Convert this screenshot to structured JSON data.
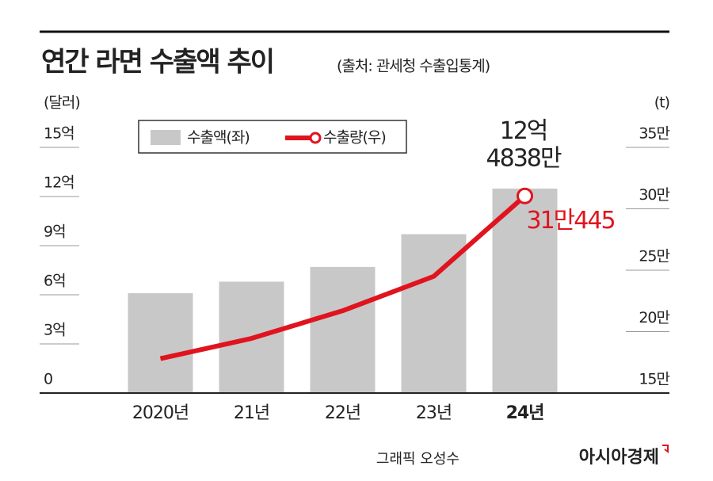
{
  "chart_data": {
    "type": "bar",
    "title": "연간 라면 수출액 추이",
    "subtitle": "(출처: 관세청 수출입통계)",
    "y_label": "(달러)",
    "y2_label": "(t)",
    "categories": [
      "2020년",
      "21년",
      "22년",
      "23년",
      "24년"
    ],
    "series": [
      {
        "name": "수출액(좌)",
        "type": "bar",
        "color": "#c8c8c8",
        "values": [
          6.1,
          6.8,
          7.7,
          9.7,
          12.4838
        ],
        "value_labels": [
          null,
          null,
          null,
          null,
          "12억\n4838만"
        ]
      },
      {
        "name": "수출량(우)",
        "type": "line",
        "axis": "y2",
        "color": "#e0141e",
        "values": [
          17.8,
          19.45,
          21.7,
          24.5,
          31.0445
        ],
        "value_labels": [
          null,
          null,
          null,
          null,
          "31만445"
        ]
      }
    ],
    "ylim": [
      0,
      15
    ],
    "yticks": [
      0,
      {
        "value": 3,
        "label": "3억"
      },
      {
        "value": 6,
        "label": "6억"
      },
      {
        "value": 9,
        "label": "9억"
      },
      {
        "value": 12,
        "label": "12억"
      },
      {
        "value": 15,
        "label": "15억"
      }
    ],
    "y2lim": [
      15,
      35
    ],
    "y2ticks": [
      {
        "value": 15,
        "label": "15만"
      },
      {
        "value": 20,
        "label": "20만"
      },
      {
        "value": 25,
        "label": "25만"
      },
      {
        "value": 30,
        "label": "30만"
      },
      {
        "value": 35,
        "label": "35만"
      }
    ],
    "credit": "그래픽 오성수",
    "brand": "아시아경제"
  }
}
